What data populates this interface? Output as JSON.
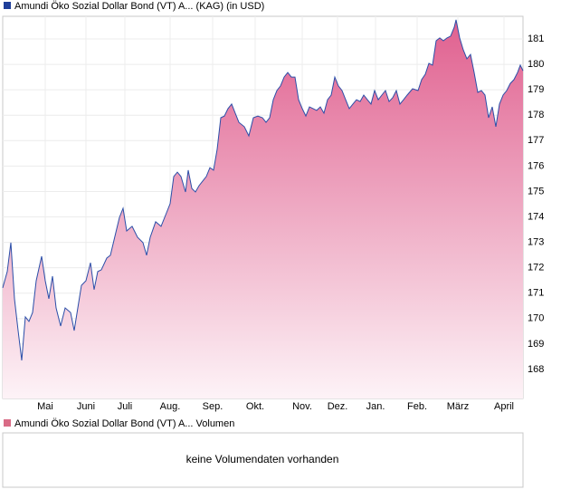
{
  "chart_data": {
    "type": "area",
    "title": "Amundi Öko Sozial Dollar Bond (VT) A... (KAG) (in USD)",
    "volume_title": "Amundi Öko Sozial Dollar Bond (VT) A... Volumen",
    "volume_note": "keine Volumendaten vorhanden",
    "line_color": "#2b4ea8",
    "fill_top": "#e0608f",
    "fill_bottom": "#fdf3f7",
    "legend_color": "#1f3f9a",
    "volume_legend_color": "#d96b86",
    "grid": true,
    "xlim": [
      0,
      575
    ],
    "ylim": [
      166.86,
      181.89
    ],
    "yticks": [
      168,
      169,
      170,
      171,
      172,
      173,
      174,
      175,
      176,
      177,
      178,
      179,
      180,
      181
    ],
    "xticks": [
      {
        "value": 47,
        "label": "Mai"
      },
      {
        "value": 92,
        "label": "Juni"
      },
      {
        "value": 135,
        "label": "Juli"
      },
      {
        "value": 185,
        "label": "Aug."
      },
      {
        "value": 232,
        "label": "Sep."
      },
      {
        "value": 279,
        "label": "Okt."
      },
      {
        "value": 331,
        "label": "Nov."
      },
      {
        "value": 370,
        "label": "Dez."
      },
      {
        "value": 412,
        "label": "Jan."
      },
      {
        "value": 458,
        "label": "Feb."
      },
      {
        "value": 503,
        "label": "März"
      },
      {
        "value": 554,
        "label": "April"
      }
    ],
    "x": [
      0,
      5,
      9,
      13,
      17,
      21,
      25,
      29,
      33,
      37,
      43,
      47,
      51,
      55,
      59,
      64,
      69,
      75,
      79,
      83,
      87,
      92,
      97,
      101,
      105,
      109,
      115,
      119,
      123,
      129,
      133,
      137,
      143,
      149,
      155,
      159,
      163,
      169,
      175,
      181,
      185,
      189,
      193,
      197,
      202,
      205,
      209,
      213,
      217,
      221,
      225,
      229,
      233,
      237,
      241,
      245,
      249,
      253,
      257,
      261,
      267,
      272,
      277,
      282,
      287,
      291,
      295,
      299,
      303,
      307,
      311,
      315,
      319,
      323,
      327,
      331,
      335,
      339,
      343,
      347,
      351,
      355,
      359,
      363,
      367,
      371,
      375,
      379,
      383,
      387,
      391,
      395,
      399,
      403,
      407,
      411,
      415,
      419,
      423,
      427,
      431,
      435,
      439,
      443,
      447,
      453,
      459,
      463,
      467,
      471,
      475,
      479,
      483,
      487,
      491,
      495,
      499,
      501,
      505,
      509,
      513,
      517,
      521,
      525,
      529,
      533,
      537,
      541,
      545,
      549,
      553,
      557,
      561,
      565,
      569,
      572,
      575
    ],
    "values": [
      171.21,
      171.85,
      172.99,
      170.78,
      169.53,
      168.36,
      170.07,
      169.89,
      170.24,
      171.49,
      172.45,
      171.49,
      170.78,
      171.67,
      170.42,
      169.71,
      170.42,
      170.24,
      169.53,
      170.42,
      171.31,
      171.49,
      172.2,
      171.14,
      171.85,
      171.92,
      172.38,
      172.49,
      173.09,
      173.98,
      174.34,
      173.45,
      173.63,
      173.2,
      172.99,
      172.49,
      173.2,
      173.81,
      173.63,
      174.16,
      174.52,
      175.59,
      175.76,
      175.59,
      174.98,
      175.84,
      175.12,
      174.98,
      175.23,
      175.41,
      175.59,
      175.94,
      175.84,
      176.66,
      177.9,
      177.97,
      178.26,
      178.44,
      178.08,
      177.72,
      177.55,
      177.19,
      177.9,
      177.97,
      177.9,
      177.72,
      177.9,
      178.61,
      178.97,
      179.15,
      179.5,
      179.68,
      179.5,
      179.5,
      178.61,
      178.26,
      177.97,
      178.33,
      178.26,
      178.19,
      178.33,
      178.08,
      178.61,
      178.79,
      179.5,
      179.15,
      178.97,
      178.61,
      178.26,
      178.44,
      178.61,
      178.54,
      178.79,
      178.61,
      178.44,
      178.97,
      178.61,
      178.79,
      178.97,
      178.54,
      178.69,
      178.97,
      178.44,
      178.61,
      178.79,
      179.04,
      178.97,
      179.4,
      179.61,
      180.04,
      179.97,
      180.93,
      181.04,
      180.93,
      181.04,
      181.11,
      181.46,
      181.75,
      181.04,
      180.57,
      180.22,
      180.39,
      179.68,
      178.9,
      178.97,
      178.79,
      177.9,
      178.33,
      177.55,
      178.44,
      178.79,
      178.97,
      179.25,
      179.4,
      179.68,
      179.97,
      179.75
    ]
  }
}
